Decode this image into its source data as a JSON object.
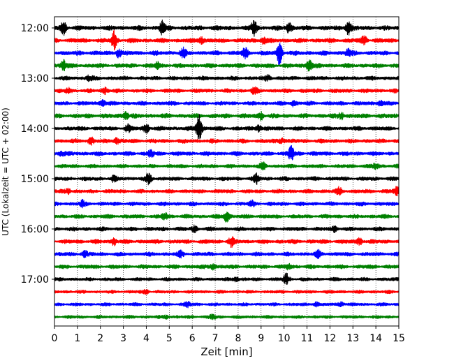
{
  "chart_data": {
    "type": "line",
    "title": "",
    "xlabel": "Zeit  [min]",
    "ylabel": "UTC (Lokalzeit = UTC + 02:00)",
    "xlim": [
      0,
      15
    ],
    "x_ticks": [
      0,
      1,
      2,
      3,
      4,
      5,
      6,
      7,
      8,
      9,
      10,
      11,
      12,
      13,
      14,
      15
    ],
    "y_hour_labels": [
      "12:00",
      "13:00",
      "14:00",
      "15:00",
      "16:00",
      "17:00"
    ],
    "trace_colors": [
      "#000000",
      "#ff0000",
      "#0000ff",
      "#008000"
    ],
    "rows_per_hour": 4,
    "row_minutes": 15,
    "grid": "vertical dotted lines at each minute",
    "traces": [
      {
        "start": "12:00",
        "color": "#000000",
        "amplitude": 0.55,
        "events": [
          [
            0.4,
            1.0
          ],
          [
            4.7,
            1.1
          ],
          [
            8.7,
            1.3
          ],
          [
            10.2,
            0.9
          ],
          [
            12.8,
            1.1
          ]
        ]
      },
      {
        "start": "12:15",
        "color": "#ff0000",
        "amplitude": 0.45,
        "events": [
          [
            2.6,
            1.6
          ],
          [
            6.4,
            0.6
          ],
          [
            9.1,
            0.6
          ],
          [
            13.5,
            0.7
          ]
        ]
      },
      {
        "start": "12:30",
        "color": "#0000ff",
        "amplitude": 0.5,
        "events": [
          [
            2.8,
            0.8
          ],
          [
            5.6,
            0.7
          ],
          [
            8.3,
            0.8
          ],
          [
            9.8,
            1.8
          ],
          [
            12.8,
            0.6
          ]
        ]
      },
      {
        "start": "12:45",
        "color": "#008000",
        "amplitude": 0.45,
        "events": [
          [
            0.4,
            0.9
          ],
          [
            4.5,
            0.6
          ],
          [
            11.1,
            1.0
          ]
        ]
      },
      {
        "start": "13:00",
        "color": "#000000",
        "amplitude": 0.35,
        "events": [
          [
            1.5,
            0.5
          ],
          [
            9.3,
            0.5
          ]
        ]
      },
      {
        "start": "13:15",
        "color": "#ff0000",
        "amplitude": 0.35,
        "events": [
          [
            0.6,
            0.6
          ],
          [
            2.2,
            0.5
          ],
          [
            8.7,
            0.5
          ]
        ]
      },
      {
        "start": "13:30",
        "color": "#0000ff",
        "amplitude": 0.35,
        "events": [
          [
            2.1,
            0.6
          ],
          [
            10.4,
            0.5
          ],
          [
            14.2,
            0.5
          ]
        ]
      },
      {
        "start": "13:45",
        "color": "#008000",
        "amplitude": 0.5,
        "events": [
          [
            3.1,
            0.7
          ],
          [
            9.0,
            0.6
          ],
          [
            12.5,
            0.6
          ]
        ]
      },
      {
        "start": "14:00",
        "color": "#000000",
        "amplitude": 0.4,
        "events": [
          [
            4.0,
            0.8
          ],
          [
            6.3,
            2.6
          ],
          [
            8.9,
            0.7
          ],
          [
            3.2,
            0.6
          ]
        ]
      },
      {
        "start": "14:15",
        "color": "#ff0000",
        "amplitude": 0.4,
        "events": [
          [
            1.6,
            0.6
          ],
          [
            2.7,
            0.6
          ],
          [
            9.9,
            0.5
          ]
        ]
      },
      {
        "start": "14:30",
        "color": "#0000ff",
        "amplitude": 0.4,
        "events": [
          [
            4.2,
            0.6
          ],
          [
            10.3,
            1.3
          ],
          [
            0.3,
            0.5
          ]
        ]
      },
      {
        "start": "14:45",
        "color": "#008000",
        "amplitude": 0.3,
        "events": [
          [
            9.1,
            0.7
          ],
          [
            14.0,
            0.6
          ]
        ]
      },
      {
        "start": "15:00",
        "color": "#000000",
        "amplitude": 0.35,
        "events": [
          [
            4.1,
            1.0
          ],
          [
            8.8,
            0.8
          ],
          [
            2.6,
            0.5
          ]
        ]
      },
      {
        "start": "15:15",
        "color": "#ff0000",
        "amplitude": 0.35,
        "events": [
          [
            0.6,
            0.5
          ],
          [
            14.9,
            0.7
          ],
          [
            12.4,
            0.6
          ]
        ]
      },
      {
        "start": "15:30",
        "color": "#0000ff",
        "amplitude": 0.3,
        "events": [
          [
            1.2,
            0.6
          ],
          [
            8.6,
            0.5
          ]
        ]
      },
      {
        "start": "15:45",
        "color": "#008000",
        "amplitude": 0.35,
        "events": [
          [
            7.5,
            1.1
          ],
          [
            4.8,
            0.6
          ]
        ]
      },
      {
        "start": "16:00",
        "color": "#000000",
        "amplitude": 0.35,
        "events": [
          [
            6.1,
            0.5
          ],
          [
            12.2,
            0.5
          ]
        ]
      },
      {
        "start": "16:15",
        "color": "#ff0000",
        "amplitude": 0.4,
        "events": [
          [
            7.7,
            0.8
          ],
          [
            2.6,
            0.6
          ],
          [
            13.3,
            0.6
          ]
        ]
      },
      {
        "start": "16:30",
        "color": "#0000ff",
        "amplitude": 0.35,
        "events": [
          [
            1.3,
            0.6
          ],
          [
            5.5,
            0.5
          ],
          [
            11.5,
            0.5
          ]
        ]
      },
      {
        "start": "16:45",
        "color": "#008000",
        "amplitude": 0.35,
        "events": [
          [
            6.9,
            0.6
          ],
          [
            10.2,
            0.5
          ]
        ]
      },
      {
        "start": "17:00",
        "color": "#000000",
        "amplitude": 0.2,
        "events": [
          [
            10.1,
            1.1
          ],
          [
            7.9,
            0.5
          ]
        ]
      },
      {
        "start": "17:15",
        "color": "#ff0000",
        "amplitude": 0.12,
        "events": [
          [
            4.0,
            0.4
          ]
        ]
      },
      {
        "start": "17:30",
        "color": "#0000ff",
        "amplitude": 0.1,
        "events": [
          [
            5.8,
            0.6
          ],
          [
            11.4,
            0.5
          ],
          [
            12.5,
            0.5
          ]
        ]
      },
      {
        "start": "17:45",
        "color": "#008000",
        "amplitude": 0.1,
        "events": [
          [
            6.9,
            0.6
          ],
          [
            4.9,
            0.4
          ]
        ]
      }
    ]
  }
}
